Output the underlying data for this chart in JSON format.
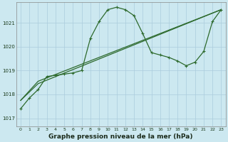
{
  "xlabel": "Graphe pression niveau de la mer (hPa)",
  "background_color": "#cce8f0",
  "grid_color": "#aaccdd",
  "line_color": "#2d6a2d",
  "xlim": [
    -0.5,
    23.5
  ],
  "ylim": [
    1016.65,
    1021.85
  ],
  "yticks": [
    1017,
    1018,
    1019,
    1020,
    1021
  ],
  "xticks": [
    0,
    1,
    2,
    3,
    4,
    5,
    6,
    7,
    8,
    9,
    10,
    11,
    12,
    13,
    14,
    15,
    16,
    17,
    18,
    19,
    20,
    21,
    22,
    23
  ],
  "series1_x": [
    0,
    1,
    2,
    3,
    4,
    5,
    6,
    7,
    8,
    9,
    10,
    11,
    12,
    13,
    14,
    15,
    16,
    17,
    18,
    19,
    20,
    21,
    22,
    23
  ],
  "series1_y": [
    1017.4,
    1017.85,
    1018.2,
    1018.75,
    1018.8,
    1018.85,
    1018.9,
    1019.0,
    1020.35,
    1021.05,
    1021.55,
    1021.65,
    1021.55,
    1021.3,
    1020.55,
    1019.75,
    1019.65,
    1019.55,
    1019.4,
    1019.2,
    1019.35,
    1019.8,
    1021.05,
    1021.55
  ],
  "series2_x": [
    0,
    2,
    23
  ],
  "series2_y": [
    1017.75,
    1018.55,
    1021.55
  ],
  "series3_x": [
    0,
    2,
    23
  ],
  "series3_y": [
    1017.75,
    1018.45,
    1021.55
  ]
}
